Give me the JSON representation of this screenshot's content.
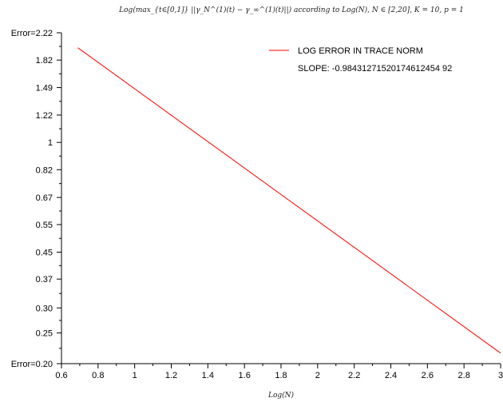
{
  "chart_data": {
    "type": "line",
    "title": "Log(max_{t∈[0,1]} ||γ_N^(1)(t) − γ_∞^(1)(t)||) according to Log(N), N ∈ [2,20], K = 10, p = 1",
    "xlabel": "Log(N)",
    "ylabel": "",
    "x_scale": "linear",
    "y_scale": "log",
    "xlim": [
      0.6,
      3.0
    ],
    "ylim": [
      0.2,
      2.22
    ],
    "x_ticks": [
      0.6,
      0.8,
      1.0,
      1.2,
      1.4,
      1.6,
      1.8,
      2.0,
      2.2,
      2.4,
      2.6,
      2.8,
      3.0
    ],
    "x_tick_labels": [
      "0.6",
      "0.8",
      "1",
      "1.2",
      "1.4",
      "1.6",
      "1.8",
      "2",
      "2.2",
      "2.4",
      "2.6",
      "2.8",
      "3"
    ],
    "y_ticks": [
      0.2,
      0.25,
      0.3,
      0.37,
      0.45,
      0.55,
      0.67,
      0.82,
      1.0,
      1.22,
      1.49,
      1.82,
      2.22
    ],
    "y_tick_labels": [
      "Error=0.20",
      "0.25",
      "0.30",
      "0.37",
      "0.45",
      "0.55",
      "0.67",
      "0.82",
      "1",
      "1.22",
      "1.49",
      "1.82",
      "Error=2.22"
    ],
    "grid": false,
    "legend_position": "top-right",
    "series": [
      {
        "name": "LOG ERROR IN TRACE NORM",
        "color": "#ff0000",
        "x": [
          0.69,
          3.0
        ],
        "y": [
          1.99,
          0.216
        ]
      }
    ],
    "annotations": [
      "SLOPE: -0.98431271520174612454 92"
    ]
  }
}
